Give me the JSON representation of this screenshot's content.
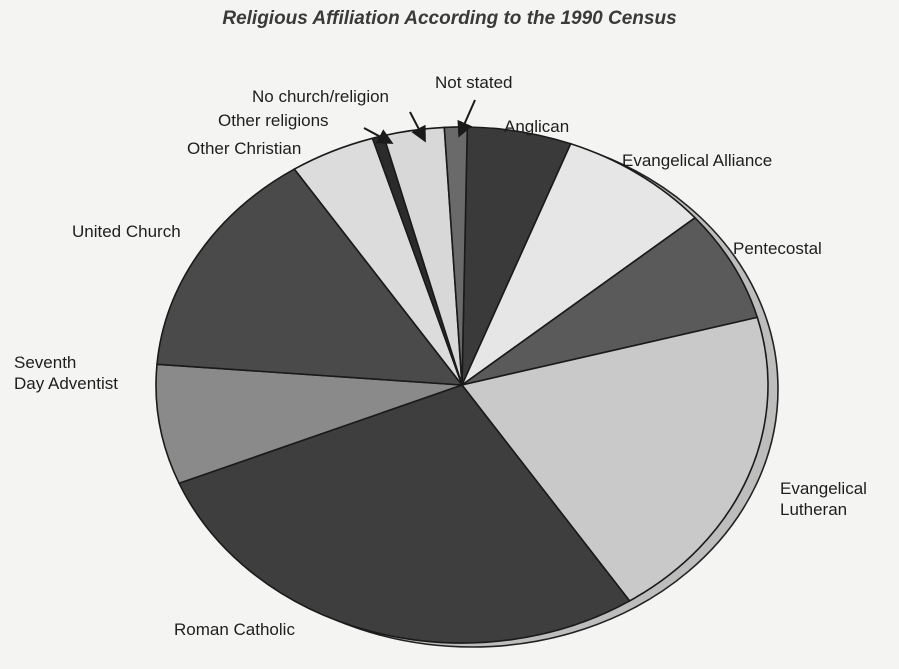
{
  "chart_data": {
    "type": "pie",
    "title": "Religious Affiliation According to the 1990 Census",
    "categories": [
      "Anglican",
      "Evangelical Alliance",
      "Pentecostal",
      "Evangelical Lutheran",
      "Roman Catholic",
      "Seventh Day Adventist",
      "United Church",
      "Other Christian",
      "Other religions",
      "No church/religion",
      "Not stated"
    ],
    "values": [
      5.5,
      8.0,
      7.0,
      20.0,
      28.0,
      7.5,
      14.5,
      4.5,
      0.6,
      3.2,
      1.2
    ],
    "unit": "percent (approximate, read from slice angles)",
    "colors": [
      "#3a3a3a",
      "#e6e6e6",
      "#5a5a5a",
      "#c9c9c9",
      "#3e3e3e",
      "#8a8a8a",
      "#4a4a4a",
      "#dcdcdc",
      "#2b2b2b",
      "#d8d8d8",
      "#6a6a6a"
    ]
  }
}
